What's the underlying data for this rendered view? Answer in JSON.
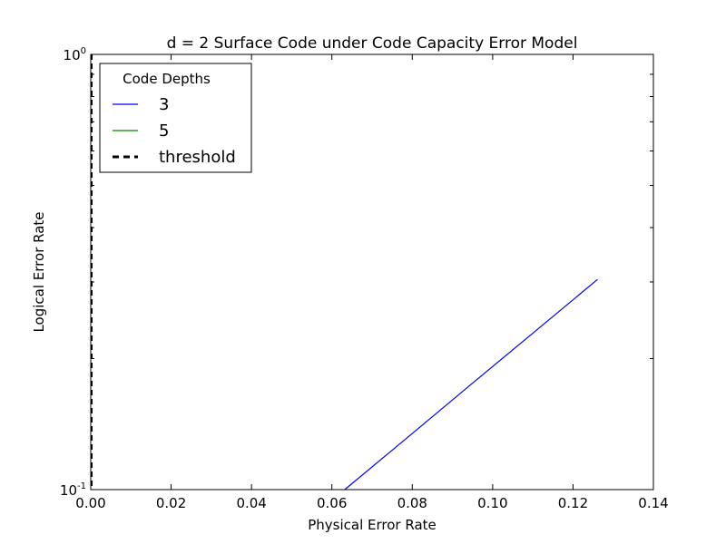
{
  "chart_data": {
    "type": "line",
    "title": "d = 2 Surface Code under Code Capacity Error Model",
    "xlabel": "Physical Error Rate",
    "ylabel": "Logical Error Rate",
    "xlim": [
      0.0,
      0.14
    ],
    "ylim": [
      0.1,
      1.0
    ],
    "yscale": "log",
    "grid": false,
    "legend": {
      "title": "Code Depths",
      "placement": "top-left",
      "entries": [
        {
          "label": "3",
          "color": "#0000ff",
          "style": "solid"
        },
        {
          "label": "5",
          "color": "#008000",
          "style": "solid"
        },
        {
          "label": "threshold",
          "color": "#000000",
          "style": "dashed"
        }
      ]
    },
    "x_ticks": [
      {
        "value": 0.0,
        "label": "0.00"
      },
      {
        "value": 0.02,
        "label": "0.02"
      },
      {
        "value": 0.04,
        "label": "0.04"
      },
      {
        "value": 0.06,
        "label": "0.06"
      },
      {
        "value": 0.08,
        "label": "0.08"
      },
      {
        "value": 0.1,
        "label": "0.10"
      },
      {
        "value": 0.12,
        "label": "0.12"
      },
      {
        "value": 0.14,
        "label": "0.14"
      }
    ],
    "y_ticks": [
      {
        "value": 0.1,
        "mantissa": "10",
        "exponent": "-1"
      },
      {
        "value": 1.0,
        "mantissa": "10",
        "exponent": "0"
      }
    ],
    "y_minor_ticks": [
      0.2,
      0.3,
      0.4,
      0.5,
      0.6,
      0.7,
      0.8,
      0.9
    ],
    "series": [
      {
        "name": "3",
        "color": "#0000ff",
        "style": "solid",
        "x": [
          0.0632,
          0.079,
          0.0948,
          0.1106,
          0.1261
        ],
        "y": [
          0.1,
          0.1322,
          0.175,
          0.2312,
          0.304
        ]
      },
      {
        "name": "5",
        "color": "#008000",
        "style": "solid",
        "x": [],
        "y": []
      }
    ],
    "threshold": {
      "name": "threshold",
      "x": 0.0,
      "color": "#000000",
      "style": "dashed"
    }
  }
}
